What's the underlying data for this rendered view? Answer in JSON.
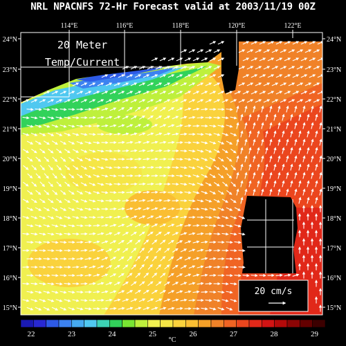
{
  "title": "NRL NPACNFS 72-Hr Forecast valid at 2003/11/19 00Z",
  "overlay": {
    "line1": "20 Meter",
    "line2": "Temp/Current"
  },
  "axes": {
    "lon_labels": [
      "114°E",
      "116°E",
      "118°E",
      "120°E",
      "122°E"
    ],
    "lat_labels": [
      "24°N",
      "23°N",
      "22°N",
      "21°N",
      "20°N",
      "19°N",
      "18°N",
      "17°N",
      "16°N",
      "15°N"
    ]
  },
  "scale_box": {
    "label": "20 cm/s"
  },
  "colorbar": {
    "unit": "°C",
    "tick_labels": [
      "22",
      "23",
      "24",
      "25",
      "26",
      "27",
      "28",
      "29"
    ],
    "colors": [
      "#1a1ab4",
      "#2828d2",
      "#2d5ae6",
      "#3c82f0",
      "#46aaf0",
      "#50c8f0",
      "#3cd2b4",
      "#32d25a",
      "#78e632",
      "#bef03c",
      "#f0f050",
      "#f5e646",
      "#fad23c",
      "#fabe32",
      "#f5a028",
      "#f08228",
      "#f06423",
      "#eb461e",
      "#e12819",
      "#d21414",
      "#b40a0a",
      "#8c0505",
      "#640000",
      "#3c0000"
    ]
  }
}
